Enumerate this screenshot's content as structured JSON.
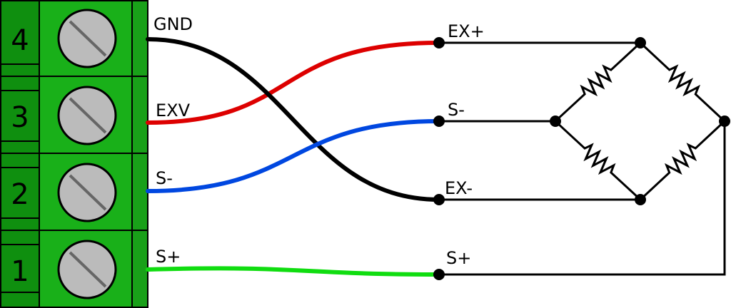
{
  "terminal_block": {
    "terminals": [
      "4",
      "3",
      "2",
      "1"
    ]
  },
  "wires": {
    "labels": [
      "GND",
      "EXV",
      "S-",
      "S+"
    ]
  },
  "bridge": {
    "labels": [
      "EX+",
      "S-",
      "EX-",
      "S+"
    ]
  }
}
